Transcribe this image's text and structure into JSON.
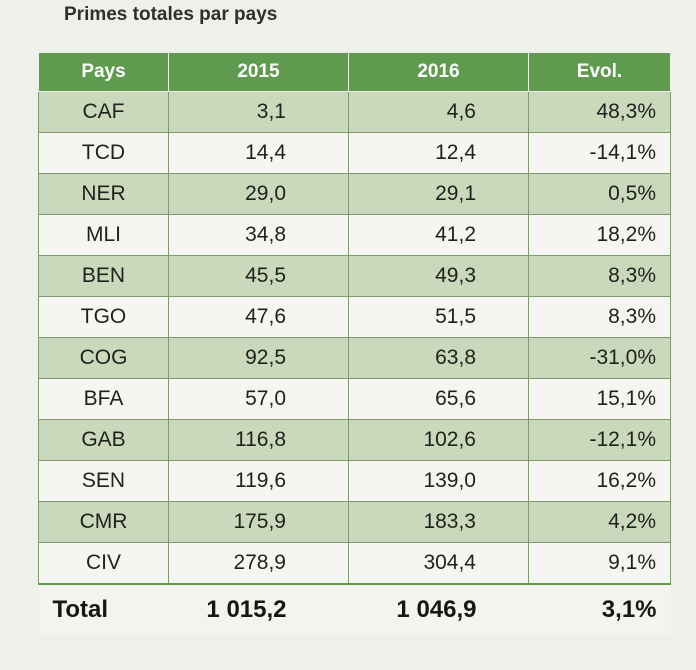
{
  "title": "Primes totales par pays",
  "table": {
    "headers": [
      "Pays",
      "2015",
      "2016",
      "Evol."
    ],
    "rows": [
      [
        "CAF",
        "3,1",
        "4,6",
        "48,3%"
      ],
      [
        "TCD",
        "14,4",
        "12,4",
        "-14,1%"
      ],
      [
        "NER",
        "29,0",
        "29,1",
        "0,5%"
      ],
      [
        "MLI",
        "34,8",
        "41,2",
        "18,2%"
      ],
      [
        "BEN",
        "45,5",
        "49,3",
        "8,3%"
      ],
      [
        "TGO",
        "47,6",
        "51,5",
        "8,3%"
      ],
      [
        "COG",
        "92,5",
        "63,8",
        "-31,0%"
      ],
      [
        "BFA",
        "57,0",
        "65,6",
        "15,1%"
      ],
      [
        "GAB",
        "116,8",
        "102,6",
        "-12,1%"
      ],
      [
        "SEN",
        "119,6",
        "139,0",
        "16,2%"
      ],
      [
        "CMR",
        "175,9",
        "183,3",
        "4,2%"
      ],
      [
        "CIV",
        "278,9",
        "304,4",
        "9,1%"
      ]
    ],
    "total": [
      "Total",
      "1 015,2",
      "1 046,9",
      "3,1%"
    ]
  },
  "colors": {
    "header_bg": "#5f9a4e",
    "row_shade": "#cad8bb",
    "row_plain": "#f5f6f2"
  }
}
